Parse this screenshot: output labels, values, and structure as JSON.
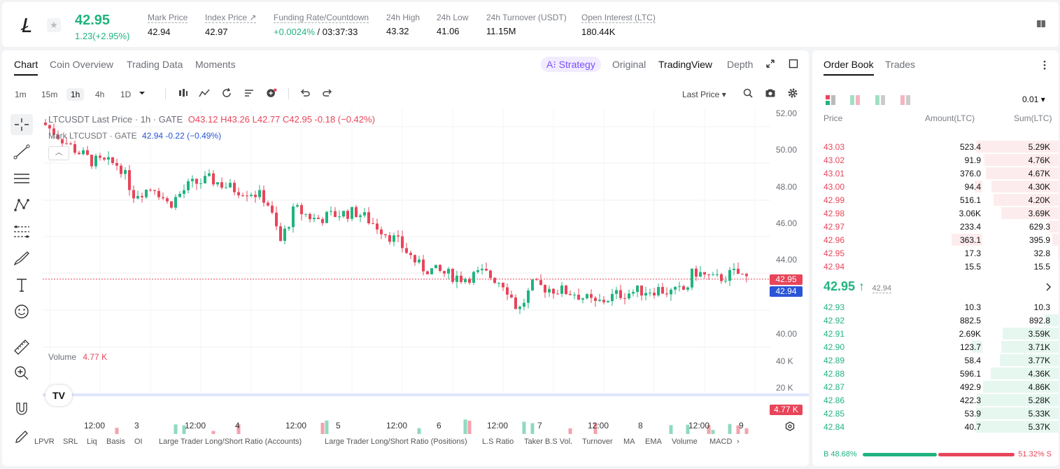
{
  "ticker": {
    "last_price": "42.95",
    "change": "1.23(+2.95%)",
    "stats": [
      {
        "label": "Mark Price",
        "value": "42.94"
      },
      {
        "label": "Index Price ↗",
        "value": "42.97"
      },
      {
        "label": "Funding Rate/Countdown",
        "value_green": "+0.0024%",
        "value": "/ 03:37:33"
      },
      {
        "label": "24h High",
        "value": "43.32"
      },
      {
        "label": "24h Low",
        "value": "41.06"
      },
      {
        "label": "24h Turnover (USDT)",
        "value": "11.15M"
      },
      {
        "label": "Open Interest (LTC)",
        "value": "180.44K"
      }
    ]
  },
  "chart_tabs": [
    "Chart",
    "Coin Overview",
    "Trading Data",
    "Moments"
  ],
  "view_tabs": {
    "strategy": "A⁝ Strategy",
    "original": "Original",
    "tradingview": "TradingView",
    "depth": "Depth"
  },
  "timeframes": [
    "1m",
    "15m",
    "1h",
    "4h",
    "1D"
  ],
  "toolbar": {
    "price_source": "Last Price ▾"
  },
  "legend": {
    "symbol": "LTCUSDT Last Price · 1h · GATE",
    "o": "O43.12",
    "h": "H43.26",
    "l": "L42.77",
    "c": "C42.95",
    "chg": "-0.18 (−0.42%)",
    "mark_symbol": "Mark LTCUSDT · GATE",
    "mark_val": "42.94 -0.22 (−0.49%)",
    "volume_label": "Volume",
    "volume_val": "4.77 K"
  },
  "price_tags": {
    "last": "42.95",
    "mark": "42.94",
    "volume": "4.77 K"
  },
  "y_axis_price": [
    "52.00",
    "50.00",
    "48.00",
    "46.00",
    "44.00",
    "40.00"
  ],
  "y_axis_volume": [
    "40 K",
    "20 K"
  ],
  "x_axis": [
    "12:00",
    "3",
    "12:00",
    "4",
    "12:00",
    "5",
    "12:00",
    "6",
    "12:00",
    "7",
    "12:00",
    "8",
    "12:00",
    "9"
  ],
  "indicators": [
    "LPVR",
    "SRL",
    "Liq",
    "Basis",
    "OI",
    "Large Trader Long/Short Ratio (Accounts)",
    "Large Trader Long/Short Ratio (Positions)",
    "L.S Ratio",
    "Taker B.S Vol.",
    "Turnover",
    "MA",
    "EMA",
    "Volume",
    "MACD"
  ],
  "orderbook": {
    "tabs": [
      "Order Book",
      "Trades"
    ],
    "precision": "0.01 ▾",
    "headers": [
      "Price",
      "Amount(LTC)",
      "Sum(LTC)"
    ],
    "asks": [
      {
        "price": "43.03",
        "amount": "523.4",
        "sum": "5.29K"
      },
      {
        "price": "43.02",
        "amount": "91.9",
        "sum": "4.76K"
      },
      {
        "price": "43.01",
        "amount": "376.0",
        "sum": "4.67K"
      },
      {
        "price": "43.00",
        "amount": "94.4",
        "sum": "4.30K"
      },
      {
        "price": "42.99",
        "amount": "516.1",
        "sum": "4.20K"
      },
      {
        "price": "42.98",
        "amount": "3.06K",
        "sum": "3.69K"
      },
      {
        "price": "42.97",
        "amount": "233.4",
        "sum": "629.3"
      },
      {
        "price": "42.96",
        "amount": "363.1",
        "sum": "395.9"
      },
      {
        "price": "42.95",
        "amount": "17.3",
        "sum": "32.8"
      },
      {
        "price": "42.94",
        "amount": "15.5",
        "sum": "15.5"
      }
    ],
    "mid_price": "42.95 ↑",
    "mid_mark": "42.94",
    "bids": [
      {
        "price": "42.93",
        "amount": "10.3",
        "sum": "10.3"
      },
      {
        "price": "42.92",
        "amount": "882.5",
        "sum": "892.8"
      },
      {
        "price": "42.91",
        "amount": "2.69K",
        "sum": "3.59K"
      },
      {
        "price": "42.90",
        "amount": "123.7",
        "sum": "3.71K"
      },
      {
        "price": "42.89",
        "amount": "58.4",
        "sum": "3.77K"
      },
      {
        "price": "42.88",
        "amount": "596.1",
        "sum": "4.36K"
      },
      {
        "price": "42.87",
        "amount": "492.9",
        "sum": "4.86K"
      },
      {
        "price": "42.86",
        "amount": "422.3",
        "sum": "5.28K"
      },
      {
        "price": "42.85",
        "amount": "53.9",
        "sum": "5.33K"
      },
      {
        "price": "42.84",
        "amount": "40.7",
        "sum": "5.37K"
      }
    ],
    "buy_ratio": "B 48.68%",
    "sell_ratio": "51.32% S",
    "buy_ratio_value": 48.68
  },
  "colors": {
    "up": "#21b37f",
    "down": "#e8455a",
    "accent": "#7a4dff"
  }
}
